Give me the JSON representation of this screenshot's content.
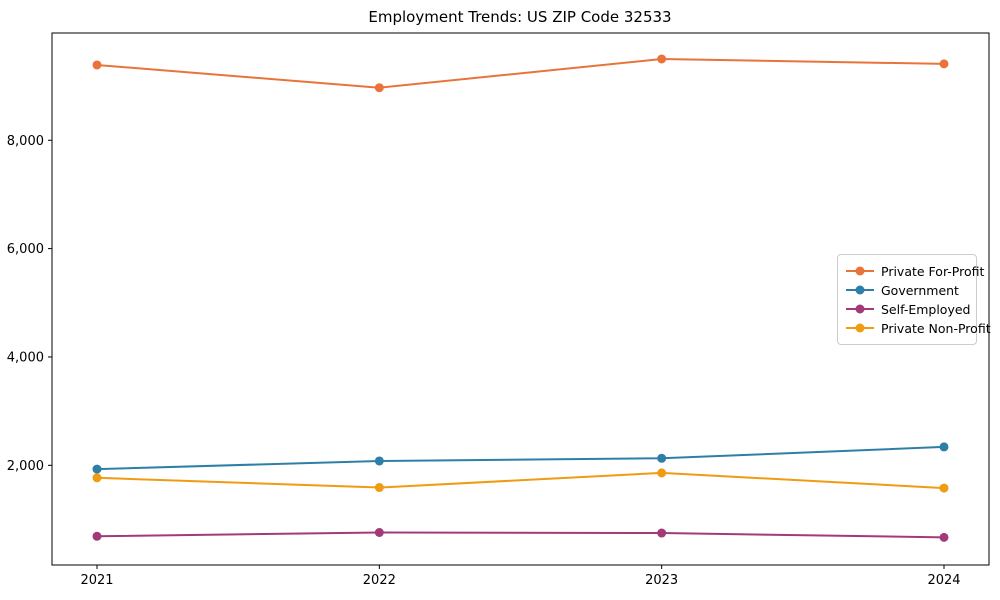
{
  "title": "Employment Trends: US ZIP Code 32533",
  "chart_data": {
    "type": "line",
    "title": "Employment Trends: US ZIP Code 32533",
    "xlabel": "",
    "ylabel": "",
    "categories": [
      "2021",
      "2022",
      "2023",
      "2024"
    ],
    "x": [
      2021,
      2022,
      2023,
      2024
    ],
    "series": [
      {
        "name": "Private For-Profit",
        "color": "#e8743b",
        "values": [
          9390,
          8970,
          9500,
          9410
        ]
      },
      {
        "name": "Government",
        "color": "#2d7fa7",
        "values": [
          1930,
          2080,
          2130,
          2340
        ]
      },
      {
        "name": "Self-Employed",
        "color": "#a23a79",
        "values": [
          690,
          760,
          750,
          670
        ]
      },
      {
        "name": "Private Non-Profit",
        "color": "#f09c13",
        "values": [
          1770,
          1590,
          1860,
          1580
        ]
      }
    ],
    "ylim": [
      160,
      9980
    ],
    "yticks": [
      2000,
      4000,
      6000,
      8000
    ],
    "ytick_labels": [
      "2,000",
      "4,000",
      "6,000",
      "8,000"
    ],
    "grid": false,
    "legend_position": "center-right",
    "axis_color": "#000000",
    "background_color": "#ffffff",
    "marker": "circle",
    "marker_radius": 4.5,
    "line_width": 2
  }
}
